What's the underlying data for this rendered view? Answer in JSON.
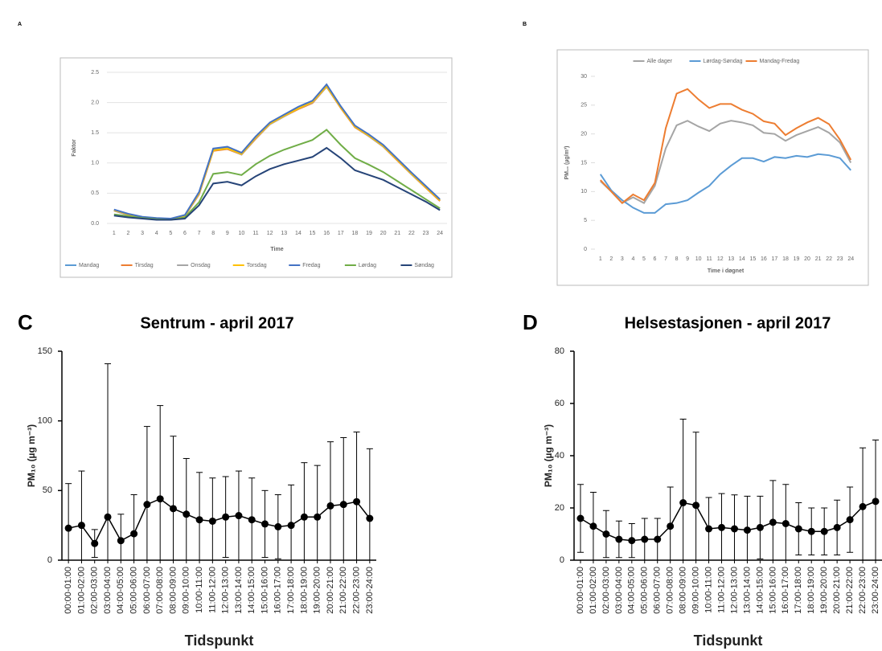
{
  "chart_data": [
    {
      "type": "line",
      "panel": "A",
      "xlabel": "Time",
      "ylabel": "Faktor",
      "x": [
        1,
        2,
        3,
        4,
        5,
        6,
        7,
        8,
        9,
        10,
        11,
        12,
        13,
        14,
        15,
        16,
        17,
        18,
        19,
        20,
        21,
        22,
        23,
        24
      ],
      "ylim": [
        0,
        2.5
      ],
      "yticks": [
        {
          "value": 0,
          "label": "0.0"
        },
        {
          "value": 0.5,
          "label": "0.5"
        },
        {
          "value": 1,
          "label": "1.0"
        },
        {
          "value": 1.5,
          "label": "1.5"
        },
        {
          "value": 2,
          "label": "2.0"
        },
        {
          "value": 2.5,
          "label": "2.5"
        }
      ],
      "grid": true,
      "legend": "bottom",
      "series": [
        {
          "name": "Mandag",
          "color": "#5b9bd5",
          "values": [
            0.22,
            0.15,
            0.1,
            0.08,
            0.07,
            0.13,
            0.5,
            1.22,
            1.25,
            1.15,
            1.42,
            1.65,
            1.78,
            1.9,
            2.0,
            2.27,
            1.92,
            1.6,
            1.45,
            1.28,
            1.05,
            0.82,
            0.6,
            0.38
          ]
        },
        {
          "name": "Tirsdag",
          "color": "#ed7d31",
          "values": [
            0.21,
            0.14,
            0.1,
            0.08,
            0.07,
            0.12,
            0.48,
            1.2,
            1.23,
            1.14,
            1.4,
            1.64,
            1.77,
            1.89,
            1.99,
            2.26,
            1.91,
            1.59,
            1.44,
            1.27,
            1.04,
            0.81,
            0.59,
            0.37
          ]
        },
        {
          "name": "Onsdag",
          "color": "#a5a5a5",
          "values": [
            0.21,
            0.14,
            0.1,
            0.08,
            0.07,
            0.12,
            0.49,
            1.21,
            1.24,
            1.14,
            1.41,
            1.64,
            1.77,
            1.9,
            2.0,
            2.26,
            1.92,
            1.6,
            1.44,
            1.27,
            1.05,
            0.81,
            0.6,
            0.38
          ]
        },
        {
          "name": "Torsdag",
          "color": "#ffc000",
          "values": [
            0.22,
            0.15,
            0.1,
            0.08,
            0.07,
            0.13,
            0.5,
            1.21,
            1.24,
            1.15,
            1.42,
            1.65,
            1.78,
            1.9,
            2.01,
            2.27,
            1.92,
            1.6,
            1.45,
            1.28,
            1.05,
            0.82,
            0.6,
            0.38
          ]
        },
        {
          "name": "Fredag",
          "color": "#4472c4",
          "values": [
            0.23,
            0.16,
            0.11,
            0.09,
            0.08,
            0.14,
            0.52,
            1.24,
            1.27,
            1.17,
            1.44,
            1.67,
            1.8,
            1.93,
            2.03,
            2.3,
            1.94,
            1.62,
            1.47,
            1.3,
            1.07,
            0.84,
            0.62,
            0.4
          ]
        },
        {
          "name": "Lørdag",
          "color": "#70ad47",
          "values": [
            0.15,
            0.12,
            0.09,
            0.07,
            0.06,
            0.1,
            0.35,
            0.82,
            0.85,
            0.8,
            0.98,
            1.12,
            1.22,
            1.3,
            1.38,
            1.55,
            1.3,
            1.08,
            0.97,
            0.85,
            0.7,
            0.55,
            0.4,
            0.25
          ]
        },
        {
          "name": "Søndag",
          "color": "#264478",
          "values": [
            0.13,
            0.1,
            0.08,
            0.06,
            0.06,
            0.08,
            0.3,
            0.66,
            0.69,
            0.63,
            0.78,
            0.9,
            0.98,
            1.04,
            1.1,
            1.25,
            1.08,
            0.88,
            0.8,
            0.72,
            0.6,
            0.48,
            0.36,
            0.22
          ]
        }
      ]
    },
    {
      "type": "line",
      "panel": "B",
      "xlabel": "Time i døgnet",
      "ylabel": "PM₁₀ (µg/m³)",
      "x": [
        1,
        2,
        3,
        4,
        5,
        6,
        7,
        8,
        9,
        10,
        11,
        12,
        13,
        14,
        15,
        16,
        17,
        18,
        19,
        20,
        21,
        22,
        23,
        24
      ],
      "ylim": [
        0,
        30
      ],
      "yticks": [
        0,
        5,
        10,
        15,
        20,
        25,
        30
      ],
      "grid": false,
      "legend": "top",
      "series": [
        {
          "name": "Alle dager",
          "color": "#a5a5a5",
          "values": [
            11.8,
            10,
            8,
            9,
            8,
            11,
            17.5,
            21.5,
            22.3,
            21.3,
            20.5,
            21.8,
            22.3,
            22,
            21.5,
            20.2,
            20,
            18.8,
            19.8,
            20.5,
            21.2,
            20.2,
            18.5,
            15
          ]
        },
        {
          "name": "Lørdag-Søndag",
          "color": "#5b9bd5",
          "values": [
            13,
            10.2,
            8.5,
            7.2,
            6.3,
            6.3,
            7.8,
            8,
            8.5,
            9.8,
            11,
            13,
            14.5,
            15.8,
            15.8,
            15.2,
            16,
            15.8,
            16.2,
            16,
            16.5,
            16.3,
            15.8,
            13.7
          ]
        },
        {
          "name": "Mandag-Fredag",
          "color": "#ed7d31",
          "values": [
            12,
            10,
            8,
            9.5,
            8.5,
            11.5,
            21,
            27,
            27.8,
            26,
            24.5,
            25.2,
            25.2,
            24.2,
            23.5,
            22.2,
            21.8,
            19.8,
            21,
            22,
            22.8,
            21.7,
            19,
            15.5
          ]
        }
      ]
    },
    {
      "type": "line",
      "panel": "C",
      "title": "Sentrum - april 2017",
      "xlabel": "Tidspunkt",
      "ylabel": "PM₁₀ (µg m⁻³)",
      "categories": [
        "00:00-01:00",
        "01:00-02:00",
        "02:00-03:00",
        "03:00-04:00",
        "04:00-05:00",
        "05:00-06:00",
        "06:00-07:00",
        "07:00-08:00",
        "08:00-09:00",
        "09:00-10:00",
        "10:00-11:00",
        "11:00-12:00",
        "12:00-13:00",
        "13:00-14:00",
        "14:00-15:00",
        "15:00-16:00",
        "16:00-17:00",
        "17:00-18:00",
        "18:00-19:00",
        "19:00-20:00",
        "20:00-21:00",
        "21:00-22:00",
        "22:00-23:00",
        "23:00-24:00"
      ],
      "values": [
        23,
        25,
        12,
        31,
        14,
        19,
        40,
        44,
        37,
        33,
        29,
        28,
        31,
        32,
        29,
        26,
        24,
        25,
        31,
        31,
        39,
        40,
        42,
        30
      ],
      "errors": [
        32,
        39,
        10,
        110,
        19,
        28,
        56,
        67,
        52,
        40,
        34,
        31,
        29,
        32,
        30,
        24,
        23,
        29,
        39,
        37,
        46,
        48,
        50,
        50
      ],
      "color": "#000000",
      "markers": true,
      "ylim": [
        0,
        150
      ],
      "yticks": [
        0,
        50,
        100,
        150
      ]
    },
    {
      "type": "line",
      "panel": "D",
      "title": "Helsestasjonen - april 2017",
      "xlabel": "Tidspunkt",
      "ylabel": "PM₁₀ (µg m⁻³)",
      "categories": [
        "00:00-01:00",
        "01:00-02:00",
        "02:00-03:00",
        "03:00-04:00",
        "04:00-05:00",
        "05:00-06:00",
        "06:00-07:00",
        "07:00-08:00",
        "08:00-09:00",
        "09:00-10:00",
        "10:00-11:00",
        "11:00-12:00",
        "12:00-13:00",
        "13:00-14:00",
        "14:00-15:00",
        "15:00-16:00",
        "16:00-17:00",
        "17:00-18:00",
        "18:00-19:00",
        "19:00-20:00",
        "20:00-21:00",
        "21:00-22:00",
        "22:00-23:00",
        "23:00-24:00"
      ],
      "values": [
        16,
        13,
        10,
        8,
        7.5,
        8,
        8,
        13,
        22,
        21,
        12,
        12.5,
        12,
        11.5,
        12.5,
        14.5,
        14,
        12,
        11,
        11,
        12.5,
        15.5,
        20.5,
        22.5
      ],
      "errors": [
        13,
        13,
        9,
        7,
        6.5,
        8,
        8,
        15,
        32,
        28,
        12,
        13,
        13,
        13,
        12,
        16,
        15,
        10,
        9,
        9,
        10.5,
        12.5,
        22.5,
        23.5
      ],
      "color": "#000000",
      "markers": true,
      "ylim": [
        0,
        80
      ],
      "yticks": [
        0,
        20,
        40,
        60,
        80
      ]
    }
  ]
}
